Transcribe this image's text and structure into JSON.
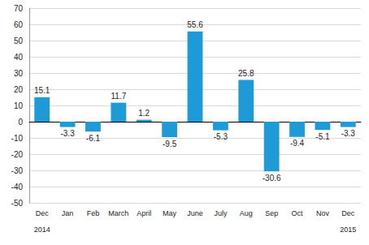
{
  "chart_data": {
    "type": "bar",
    "categories": [
      "Dec",
      "Jan",
      "Feb",
      "March",
      "April",
      "May",
      "June",
      "July",
      "Aug",
      "Sep",
      "Oct",
      "Nov",
      "Dec"
    ],
    "year_labels": [
      "2014",
      null,
      null,
      null,
      null,
      null,
      null,
      null,
      null,
      null,
      null,
      null,
      "2015"
    ],
    "values": [
      15.1,
      -3.3,
      -6.1,
      11.7,
      1.2,
      -9.5,
      55.6,
      -5.3,
      25.8,
      -30.6,
      -9.4,
      -5.1,
      -3.3
    ],
    "color": "#1e9bd7",
    "ylim": [
      -50,
      70
    ],
    "yticks": [
      -50,
      -40,
      -30,
      -20,
      -10,
      0,
      10,
      20,
      30,
      40,
      50,
      60,
      70
    ],
    "grid": true,
    "data_labels": true
  }
}
